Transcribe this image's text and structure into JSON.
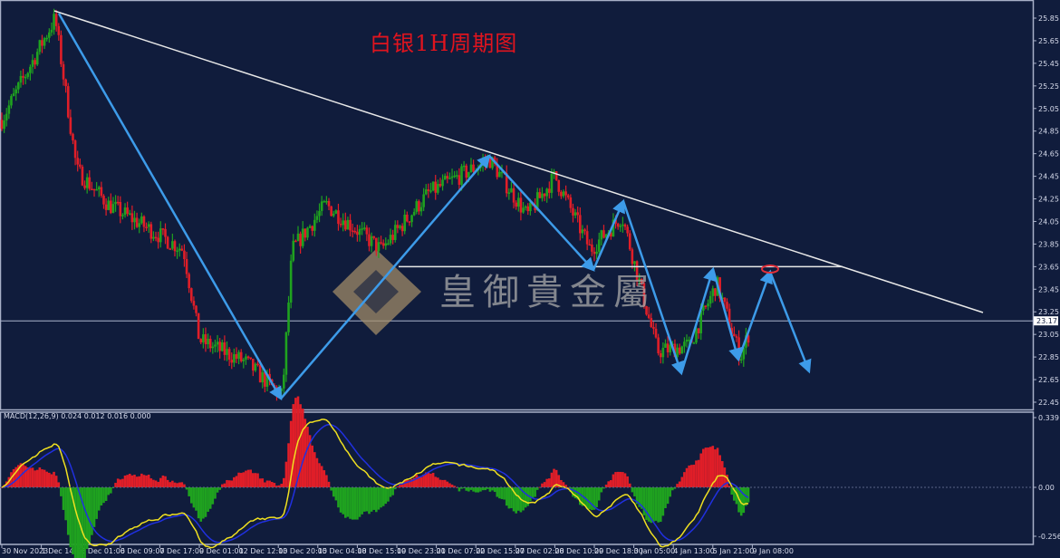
{
  "title": "白银1H周期图",
  "watermark": "皇御貴金屬",
  "chart_data": {
    "type": "candlestick",
    "title": "白银1H周期图",
    "y_ticks": [
      "25.85",
      "25.65",
      "25.45",
      "25.25",
      "25.05",
      "24.85",
      "24.65",
      "24.45",
      "24.25",
      "24.05",
      "23.85",
      "23.65",
      "23.45",
      "23.25",
      "23.05",
      "22.85",
      "22.65",
      "22.45"
    ],
    "ylim": [
      22.45,
      25.85
    ],
    "current_price": "23.17",
    "x_ticks": [
      "30 Nov 2023",
      "1 Dec 14:00",
      "5 Dec 01:00",
      "6 Dec 09:00",
      "7 Dec 17:00",
      "9 Dec 01:00",
      "12 Dec 12:00",
      "13 Dec 20:00",
      "15 Dec 04:00",
      "18 Dec 15:00",
      "19 Dec 23:00",
      "21 Dec 07:00",
      "22 Dec 15:00",
      "27 Dec 02:00",
      "28 Dec 10:00",
      "29 Dec 18:00",
      "3 Jan 05:00",
      "4 Jan 13:00",
      "5 Jan 21:00",
      "9 Jan 08:00"
    ],
    "key_points_x_tick_price": [
      [
        0,
        24.95
      ],
      [
        1.35,
        25.85
      ],
      [
        1.9,
        24.5
      ],
      [
        2.7,
        24.2
      ],
      [
        4.6,
        23.8
      ],
      [
        5.0,
        23.0
      ],
      [
        6.2,
        22.8
      ],
      [
        7.1,
        22.5
      ],
      [
        7.35,
        23.8
      ],
      [
        8.2,
        24.2
      ],
      [
        9.6,
        23.8
      ],
      [
        10.8,
        24.3
      ],
      [
        12.35,
        24.6
      ],
      [
        13.3,
        24.1
      ],
      [
        14.0,
        24.45
      ],
      [
        14.9,
        23.8
      ],
      [
        15.7,
        24.1
      ],
      [
        16.6,
        22.9
      ],
      [
        17.4,
        22.95
      ],
      [
        18.1,
        23.5
      ],
      [
        18.7,
        22.85
      ],
      [
        18.95,
        23.1
      ]
    ],
    "resistance_level": 23.65,
    "colors": {
      "bull": "#1fa21f",
      "bear": "#e01e28",
      "arrow": "#3d9be9",
      "trendline": "#e8e8e8",
      "macd_signal": "#f0e020",
      "macd_line": "#2030e0"
    },
    "macd": {
      "label": "MACD(12,26,9) 0.024 0.012 0.016 0.000",
      "y_ticks": [
        "0.339",
        "0.00",
        "-0.256"
      ],
      "ylim": [
        -0.256,
        0.339
      ]
    }
  }
}
